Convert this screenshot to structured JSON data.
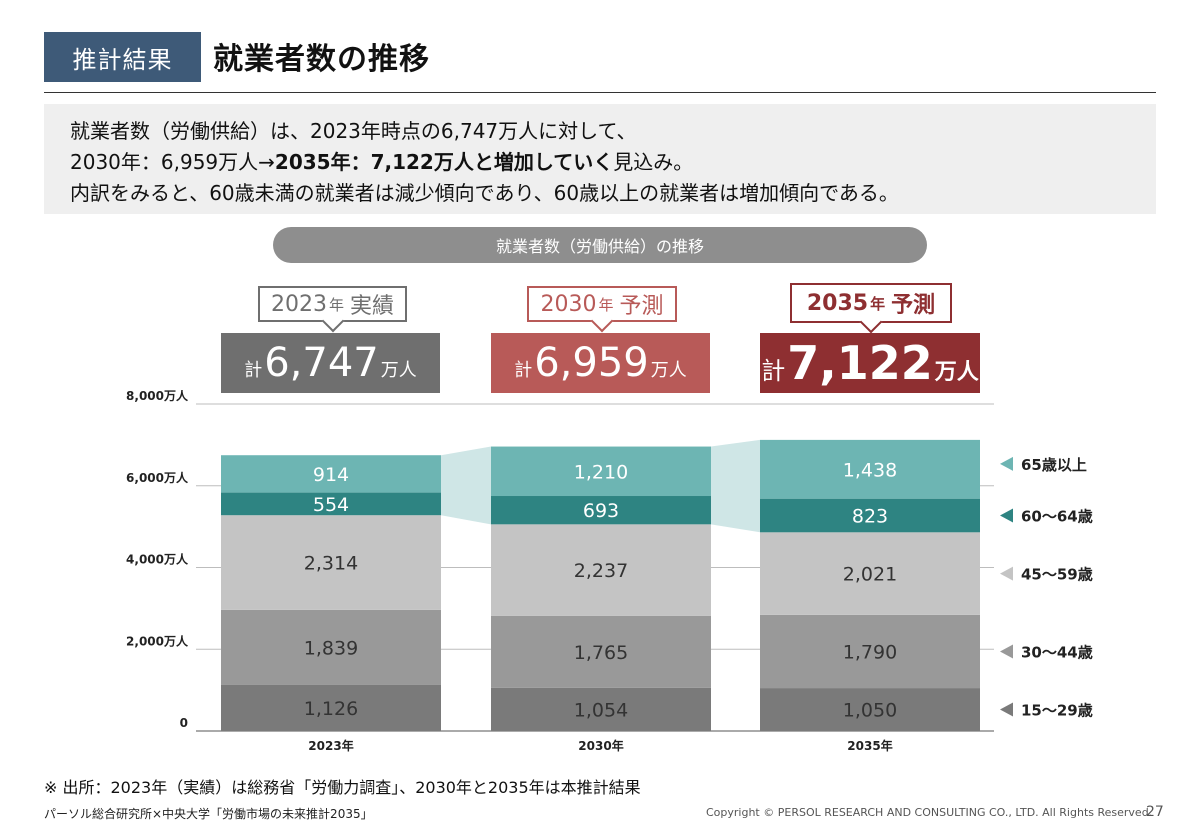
{
  "header": {
    "tag": "推計結果",
    "title": "就業者数の推移"
  },
  "summary": {
    "line1": "就業者数（労働供給）は、2023年時点の6,747万人に対して、",
    "line2_a": "2030年：6,959万人→",
    "line2_b": "2035年：7,122万人と増加していく",
    "line2_c": "見込み。",
    "line3": "内訳をみると、60歳未満の就業者は減少傾向であり、60歳以上の就業者は増加傾向である。"
  },
  "chart_title": "就業者数（労働供給）の推移",
  "callouts": [
    {
      "year": "2023",
      "year_unit": "年",
      "kind": "実績",
      "color": "#6f6f6f",
      "fill": "#6f6f6f"
    },
    {
      "year": "2030",
      "year_unit": "年",
      "kind": "予測",
      "color": "#b85a58",
      "fill": "#b85a58"
    },
    {
      "year": "2035",
      "year_unit": "年",
      "kind": "予測",
      "color": "#8e2f31",
      "fill": "#8e2f31"
    }
  ],
  "totals": [
    {
      "prefix": "計",
      "value": "6,747",
      "unit": "万人"
    },
    {
      "prefix": "計",
      "value": "6,959",
      "unit": "万人"
    },
    {
      "prefix": "計",
      "value": "7,122",
      "unit": "万人"
    }
  ],
  "chart_data": {
    "type": "bar",
    "stacked": true,
    "categories": [
      "2023年",
      "2030年",
      "2035年"
    ],
    "series": [
      {
        "name": "15～29歳",
        "values": [
          1126,
          1054,
          1050
        ],
        "labels": [
          "1,126",
          "1,054",
          "1,050"
        ],
        "color": "#7a7a7a"
      },
      {
        "name": "30～44歳",
        "values": [
          1839,
          1765,
          1790
        ],
        "labels": [
          "1,839",
          "1,765",
          "1,790"
        ],
        "color": "#999999"
      },
      {
        "name": "45～59歳",
        "values": [
          2314,
          2237,
          2021
        ],
        "labels": [
          "2,314",
          "2,237",
          "2,021"
        ],
        "color": "#c4c4c4"
      },
      {
        "name": "60～64歳",
        "values": [
          554,
          693,
          823
        ],
        "labels": [
          "554",
          "693",
          "823"
        ],
        "color": "#2e8482"
      },
      {
        "name": "65歳以上",
        "values": [
          914,
          1210,
          1438
        ],
        "labels": [
          "914",
          "1,210",
          "1,438"
        ],
        "color": "#6db5b3"
      }
    ],
    "yticks": [
      0,
      2000,
      4000,
      6000,
      8000
    ],
    "ytick_labels": [
      "0",
      "2,000万人",
      "4,000万人",
      "6,000万人",
      "8,000万人"
    ],
    "ylim": [
      0,
      8000
    ],
    "connector_color": "#cfe6e6",
    "grid": true,
    "legend_position": "right"
  },
  "footer": {
    "source": "※ 出所：2023年（実績）は総務省「労働力調査」、2030年と2035年は本推計結果",
    "org": "パーソル総合研究所×中央大学「労働市場の未来推計2035」",
    "copyright": "Copyright © PERSOL RESEARCH AND CONSULTING CO., LTD. All Rights Reserved.",
    "page": "27"
  }
}
